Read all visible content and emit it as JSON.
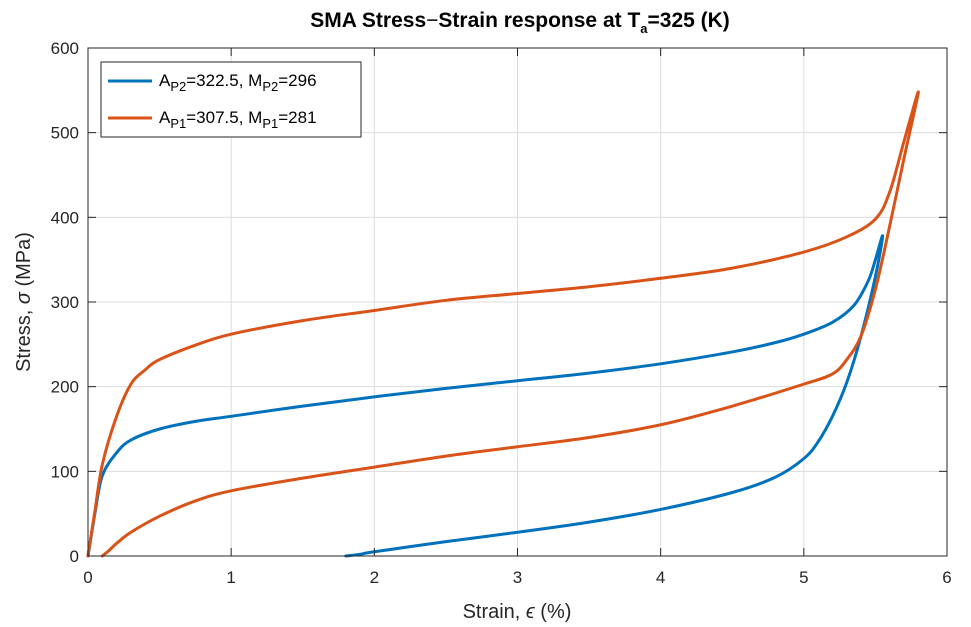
{
  "chart_data": {
    "type": "line",
    "title": {
      "main": "SMA Stress",
      "dash": "−",
      "main2": "Strain response at T",
      "sub": "a",
      "tail": "=325 (K)"
    },
    "xlabel": {
      "pre": "Strain, ",
      "sym": "ϵ",
      "post": " (%)"
    },
    "ylabel": {
      "pre": "Stress, ",
      "sym": "σ",
      "post": " (MPa)"
    },
    "xlim": [
      0,
      6
    ],
    "ylim": [
      0,
      600
    ],
    "xticks": [
      0,
      1,
      2,
      3,
      4,
      5,
      6
    ],
    "yticks": [
      0,
      100,
      200,
      300,
      400,
      500,
      600
    ],
    "grid": true,
    "legend_position": "top-left",
    "series": [
      {
        "name": "A_P2=322.5, M_P2=296",
        "legend": {
          "a": "A",
          "a_sub": "P2",
          "a_val": "=322.5, M",
          "m_sub": "P2",
          "m_val": "=296"
        },
        "color": "#0072BD",
        "x": [
          0,
          0.05,
          0.1,
          0.2,
          0.3,
          0.5,
          0.75,
          1.0,
          1.5,
          2.0,
          2.5,
          3.0,
          3.5,
          4.0,
          4.5,
          4.8,
          5.0,
          5.2,
          5.35,
          5.45,
          5.5,
          5.55,
          5.5,
          5.4,
          5.3,
          5.2,
          5.1,
          5.0,
          4.8,
          4.5,
          4.0,
          3.5,
          3.0,
          2.5,
          2.0,
          1.9,
          1.8
        ],
        "y": [
          0,
          52,
          95,
          122,
          137,
          150,
          159,
          165,
          177,
          188,
          198,
          207,
          216,
          227,
          241,
          252,
          262,
          276,
          296,
          325,
          350,
          378,
          330,
          260,
          205,
          165,
          135,
          115,
          93,
          75,
          55,
          40,
          28,
          17,
          5,
          2,
          0
        ]
      },
      {
        "name": "A_P1=307.5, M_P1=281",
        "legend": {
          "a": "A",
          "a_sub": "P1",
          "a_val": "=307.5, M",
          "m_sub": "P1",
          "m_val": "=281"
        },
        "color": "#D95319",
        "x": [
          0,
          0.05,
          0.1,
          0.2,
          0.3,
          0.4,
          0.5,
          0.75,
          1.0,
          1.5,
          2.0,
          2.5,
          3.0,
          3.5,
          4.0,
          4.5,
          5.0,
          5.3,
          5.5,
          5.6,
          5.7,
          5.8,
          5.7,
          5.6,
          5.5,
          5.4,
          5.3,
          5.2,
          5.0,
          4.5,
          4.0,
          3.5,
          3.0,
          2.5,
          2.0,
          1.5,
          1.0,
          0.75,
          0.5,
          0.3,
          0.2,
          0.15,
          0.1
        ],
        "y": [
          0,
          55,
          108,
          165,
          203,
          220,
          232,
          249,
          262,
          278,
          290,
          302,
          310,
          318,
          328,
          340,
          359,
          377,
          398,
          430,
          490,
          548,
          470,
          390,
          315,
          260,
          232,
          215,
          203,
          177,
          155,
          140,
          129,
          118,
          105,
          92,
          77,
          65,
          47,
          28,
          15,
          7,
          0
        ]
      }
    ]
  }
}
